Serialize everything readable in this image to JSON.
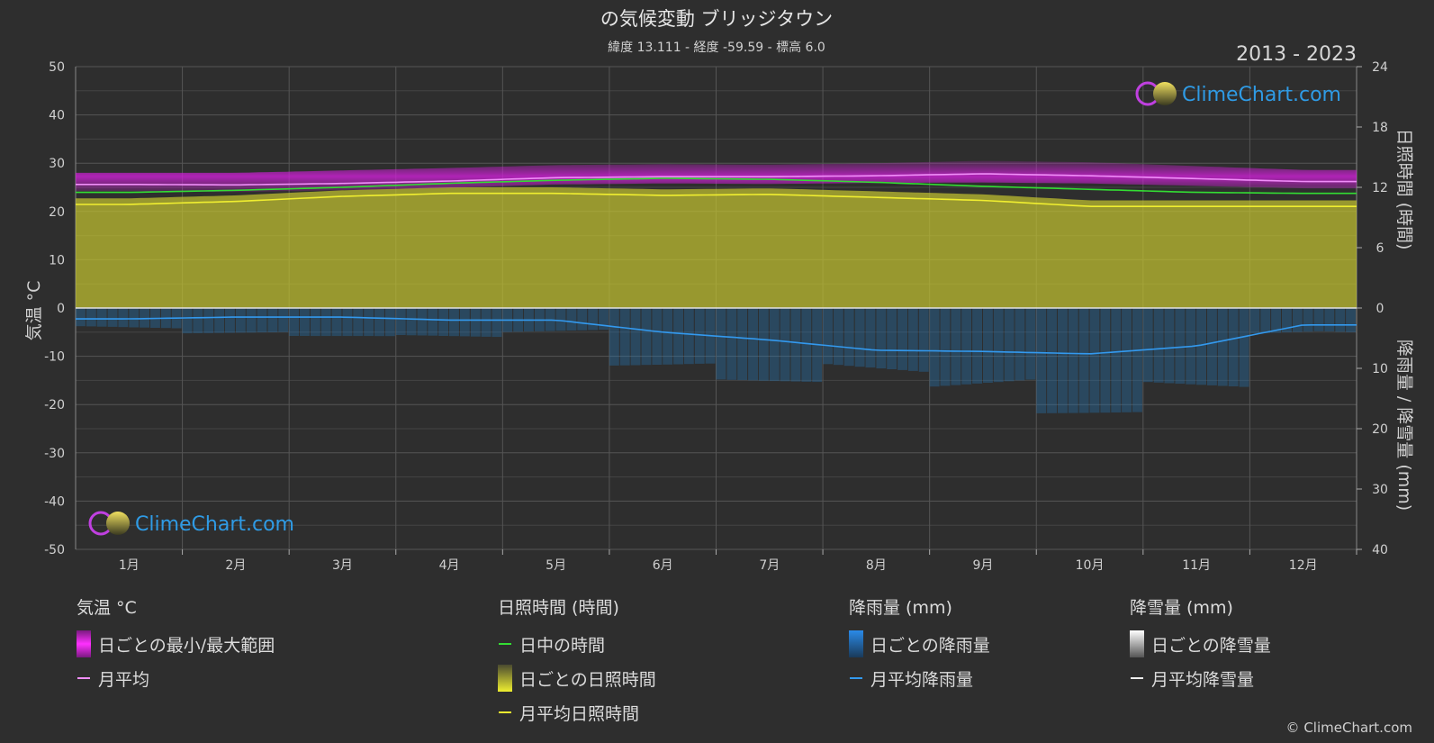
{
  "header": {
    "title": "の気候変動 ブリッジタウン",
    "subtitle": "緯度 13.111 - 経度 -59.59 - 標高 6.0",
    "year_range": "2013 - 2023"
  },
  "logo": {
    "text": "ClimeChart.com"
  },
  "copyright": "© ClimeChart.com",
  "colors": {
    "background": "#2e2e2e",
    "temp_range": "#d020d8",
    "temp_avg": "#f08ef8",
    "daylight": "#33dd33",
    "sunshine_fill": "#c2c230",
    "sunshine_avg": "#f0ee30",
    "rain_fill": "#2277bb",
    "rain_avg": "#3399ee",
    "snow_fill": "#dddddd",
    "snow_avg": "#eeeeee",
    "logo": "#2f9be5"
  },
  "chart_data": {
    "type": "line",
    "categories": [
      "1月",
      "2月",
      "3月",
      "4月",
      "5月",
      "6月",
      "7月",
      "8月",
      "9月",
      "10月",
      "11月",
      "12月"
    ],
    "axes": {
      "left": {
        "label": "気温 °C",
        "ticks": [
          50,
          40,
          30,
          20,
          10,
          0,
          -10,
          -20,
          -30,
          -40,
          -50
        ],
        "range": [
          -50,
          50
        ]
      },
      "right_top": {
        "label": "日照時間 (時間)",
        "ticks": [
          24,
          18,
          12,
          6,
          0
        ],
        "range": [
          0,
          24
        ]
      },
      "right_bottom": {
        "label": "降雨量 / 降雪量 (mm)",
        "ticks": [
          0,
          10,
          20,
          30,
          40
        ],
        "range": [
          0,
          40
        ]
      }
    },
    "grid": true,
    "series": [
      {
        "name": "日中の時間",
        "axis": "right_top",
        "values": [
          11.5,
          11.7,
          12.0,
          12.4,
          12.7,
          12.9,
          12.8,
          12.5,
          12.1,
          11.8,
          11.5,
          11.4
        ]
      },
      {
        "name": "月平均日照時間",
        "axis": "right_top",
        "values": [
          10.3,
          10.6,
          11.1,
          11.4,
          11.4,
          11.2,
          11.3,
          11.0,
          10.7,
          10.1,
          10.1,
          10.1
        ]
      },
      {
        "name": "月平均",
        "axis": "left",
        "values": [
          25.6,
          25.5,
          25.8,
          26.3,
          27.0,
          27.2,
          27.2,
          27.4,
          27.8,
          27.4,
          26.8,
          26.2
        ]
      },
      {
        "name": "日ごとの最小/最大範囲",
        "axis": "left",
        "min": [
          24.2,
          24.0,
          24.4,
          24.9,
          25.6,
          25.8,
          25.7,
          25.9,
          26.0,
          25.8,
          25.3,
          24.8
        ],
        "max": [
          28.0,
          28.0,
          28.5,
          29.0,
          29.6,
          29.8,
          29.7,
          30.0,
          30.5,
          30.2,
          29.4,
          28.6
        ]
      },
      {
        "name": "月平均降雨量",
        "axis": "right_bottom",
        "values": [
          1.8,
          1.5,
          1.5,
          2.0,
          2.0,
          4.0,
          5.3,
          7.0,
          7.2,
          7.6,
          6.3,
          2.8
        ]
      },
      {
        "name": "月平均降雪量",
        "axis": "right_bottom",
        "values": [
          0,
          0,
          0,
          0,
          0,
          0,
          0,
          0,
          0,
          0,
          0,
          0
        ]
      }
    ]
  },
  "legend": {
    "temperature": {
      "title": "気温 °C",
      "items": [
        "日ごとの最小/最大範囲",
        "月平均"
      ]
    },
    "sunshine": {
      "title": "日照時間 (時間)",
      "items": [
        "日中の時間",
        "日ごとの日照時間",
        "月平均日照時間"
      ]
    },
    "rain": {
      "title": "降雨量 (mm)",
      "items": [
        "日ごとの降雨量",
        "月平均降雨量"
      ]
    },
    "snow": {
      "title": "降雪量 (mm)",
      "items": [
        "日ごとの降雪量",
        "月平均降雪量"
      ]
    }
  }
}
